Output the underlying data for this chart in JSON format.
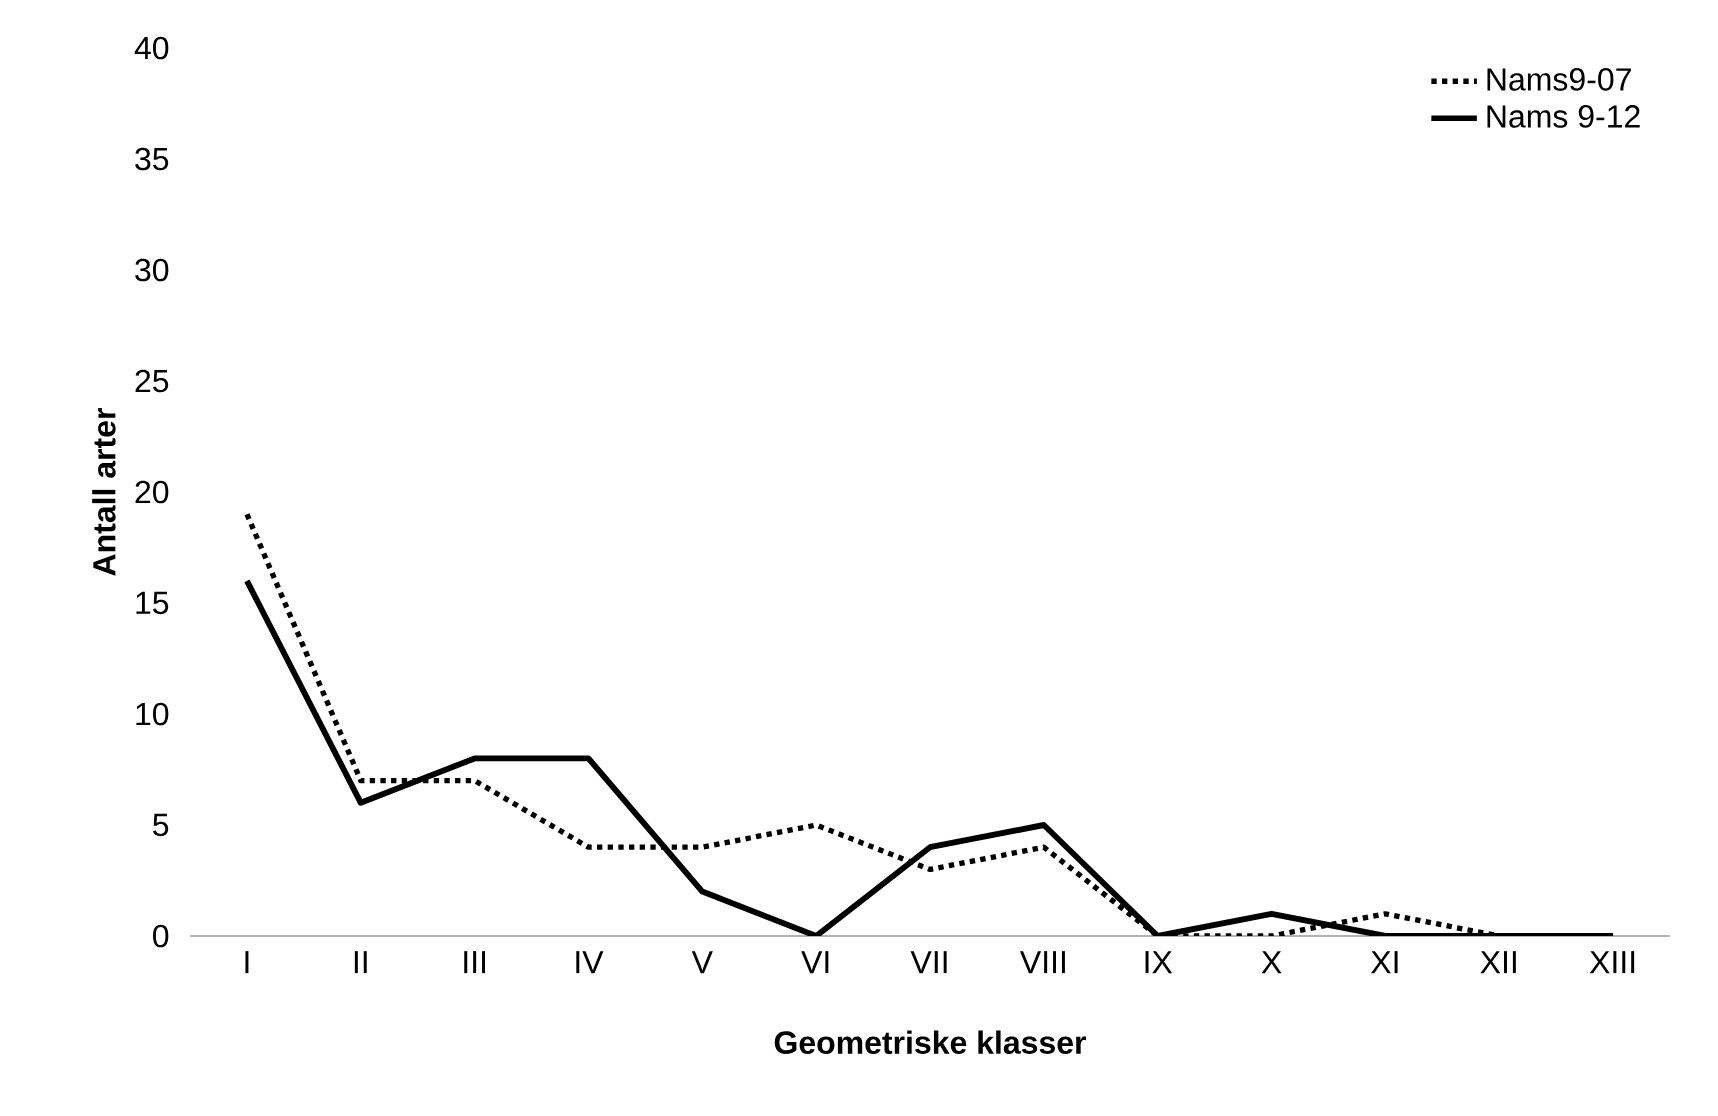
{
  "chart_data": {
    "type": "line",
    "xlabel": "Geometriske klasser",
    "ylabel": "Antall arter",
    "categories": [
      "I",
      "II",
      "III",
      "IV",
      "V",
      "VI",
      "VII",
      "VIII",
      "IX",
      "X",
      "XI",
      "XII",
      "XIII"
    ],
    "series": [
      {
        "name": "Nams9-07",
        "color": "#000000",
        "line_style": "dotted",
        "values": [
          19,
          7,
          7,
          4,
          4,
          5,
          3,
          4,
          0,
          0,
          1,
          0,
          0
        ]
      },
      {
        "name": "Nams 9-12",
        "color": "#000000",
        "line_style": "solid",
        "values": [
          16,
          6,
          8,
          8,
          2,
          0,
          4,
          5,
          0,
          1,
          0,
          0,
          0
        ]
      }
    ],
    "ylim": [
      0,
      40
    ],
    "yticks": [
      0,
      5,
      10,
      15,
      20,
      25,
      30,
      35,
      40
    ],
    "grid": false,
    "legend": "top right",
    "marker": "none"
  }
}
